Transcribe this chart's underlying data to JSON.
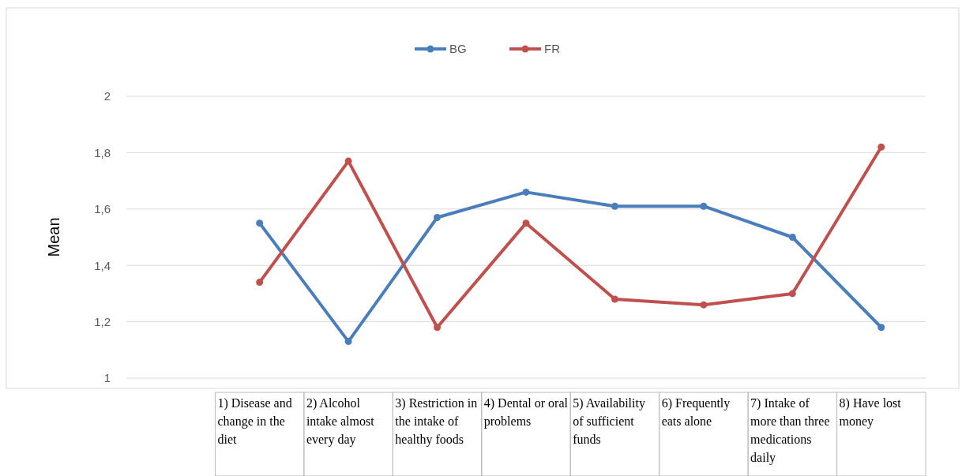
{
  "chart_data": {
    "type": "line",
    "ylabel": "Mean",
    "categories": [
      null,
      "1) Disease and change in the diet",
      "2) Alcohol intake almost every day",
      "3) Restriction in the intake of healthy foods",
      "4) Dental or oral problems",
      "5) Availability of sufficient funds",
      "6) Frequently eats alone",
      "7) Intake of more than three medications daily",
      "8) Have lost money"
    ],
    "series": [
      {
        "name": "BG",
        "color": "#4a7ebb",
        "values": [
          null,
          1.55,
          1.13,
          1.57,
          1.66,
          1.61,
          1.61,
          1.5,
          1.18
        ]
      },
      {
        "name": "FR",
        "color": "#c0504d",
        "values": [
          null,
          1.34,
          1.77,
          1.18,
          1.55,
          1.28,
          1.26,
          1.3,
          1.82
        ]
      }
    ],
    "ylim": [
      1,
      2
    ],
    "yticks": [
      1,
      {
        "value": 1.2,
        "label": "1,2"
      },
      {
        "value": 1.4,
        "label": "1,4"
      },
      {
        "value": 1.6,
        "label": "1,6"
      },
      {
        "value": 1.8,
        "label": "1,8"
      },
      2
    ],
    "grid": "y",
    "legend": "top",
    "marker": "circle",
    "line_style": "solid"
  }
}
